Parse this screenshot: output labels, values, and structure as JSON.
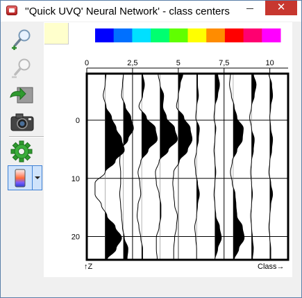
{
  "window": {
    "title": "''Quick UVQ' Neural Network' - class centers",
    "close_glyph": "✕"
  },
  "toolbar": {
    "buttons": [
      {
        "name": "zoom-in-button",
        "icon": "zoom-in-icon"
      },
      {
        "name": "zoom-out-button",
        "icon": "zoom-out-icon"
      },
      {
        "name": "export-image-button",
        "icon": "export-image-icon"
      },
      {
        "name": "snapshot-button",
        "icon": "camera-icon"
      },
      {
        "name": "settings-button",
        "icon": "gear-icon"
      },
      {
        "name": "color-scale-button",
        "icon": "color-scale-icon"
      }
    ]
  },
  "colors": {
    "palette": [
      "#0000ff",
      "#0070ff",
      "#00e0ff",
      "#00ff70",
      "#60ff00",
      "#ffff00",
      "#ff8c00",
      "#ff0000",
      "#ff0070",
      "#ff00ff"
    ],
    "fill": "#000000",
    "swatch": "#ffffcc"
  },
  "chart_data": {
    "type": "wiggle",
    "x_ticks": [
      "0",
      "2,5",
      "5",
      "7,5",
      "10"
    ],
    "y_ticks": [
      "0",
      "10",
      "20"
    ],
    "xlim": [
      0,
      11
    ],
    "ylim": [
      -8,
      24
    ],
    "x_axis_label": "Class",
    "x_axis_arrow": "→",
    "y_axis_label": "Z",
    "y_axis_arrow": "↑",
    "traces": [
      {
        "class": 1,
        "amplitude": [
          0.05,
          0.0,
          -0.1,
          0.05,
          0.35,
          0.6,
          0.9,
          1.05,
          0.55,
          0.0,
          -0.55,
          -0.55,
          -0.2,
          0.1,
          0.55,
          0.9,
          0.6,
          0.1
        ]
      },
      {
        "class": 2,
        "amplitude": [
          0.0,
          -0.05,
          -0.1,
          0.1,
          0.4,
          0.55,
          0.25,
          -0.15,
          -0.2,
          -0.15,
          -0.15,
          -0.2,
          -0.15,
          -0.1,
          -0.05,
          0.05,
          0.25,
          0.2
        ]
      },
      {
        "class": 3,
        "amplitude": [
          0.05,
          0.15,
          0.05,
          -0.15,
          0.25,
          0.75,
          0.85,
          0.35,
          -0.05,
          -0.2,
          -0.1,
          -0.05,
          -0.2,
          -0.25,
          -0.15,
          -0.05,
          0.05,
          0.05
        ]
      },
      {
        "class": 4,
        "amplitude": [
          -0.1,
          0.0,
          0.2,
          0.15,
          0.35,
          0.8,
          0.95,
          0.45,
          -0.05,
          -0.25,
          -0.2,
          -0.05,
          0.05,
          0.05,
          -0.05,
          -0.2,
          -0.2,
          -0.15
        ]
      },
      {
        "class": 5,
        "amplitude": [
          0.25,
          0.1,
          0.0,
          -0.1,
          0.3,
          0.65,
          0.75,
          0.5,
          0.05,
          -0.25,
          -0.3,
          -0.25,
          -0.2,
          -0.05,
          -0.1,
          -0.2,
          -0.25,
          -0.25
        ]
      },
      {
        "class": 6,
        "amplitude": [
          0.05,
          0.05,
          0.1,
          0.0,
          -0.05,
          0.15,
          0.1,
          0.0,
          -0.1,
          -0.05,
          0.05,
          0.15,
          0.05,
          0.0,
          -0.1,
          -0.05,
          0.0,
          0.0
        ]
      },
      {
        "class": 7,
        "amplitude": [
          0.15,
          0.25,
          0.15,
          0.0,
          -0.05,
          0.05,
          0.0,
          -0.05,
          0.0,
          0.05,
          0.0,
          -0.05,
          0.0,
          0.05,
          0.25,
          0.35,
          0.15,
          0.0
        ]
      },
      {
        "class": 8,
        "amplitude": [
          -0.15,
          -0.2,
          -0.1,
          0.05,
          0.2,
          0.55,
          0.5,
          0.2,
          -0.05,
          -0.15,
          -0.05,
          0.1,
          0.15,
          0.2,
          0.5,
          0.6,
          0.3,
          0.05
        ]
      },
      {
        "class": 9,
        "amplitude": [
          0.1,
          0.25,
          0.15,
          0.0,
          -0.1,
          0.0,
          0.15,
          0.1,
          0.0,
          -0.05,
          0.0,
          0.05,
          0.0,
          -0.05,
          0.0,
          0.05,
          0.1,
          0.05
        ]
      },
      {
        "class": 10,
        "amplitude": [
          -0.05,
          0.1,
          0.15,
          0.05,
          0.0,
          0.05,
          0.15,
          0.1,
          0.0,
          -0.05,
          0.05,
          0.15,
          0.05,
          0.0,
          -0.05,
          0.0,
          0.05,
          0.05
        ]
      }
    ]
  }
}
